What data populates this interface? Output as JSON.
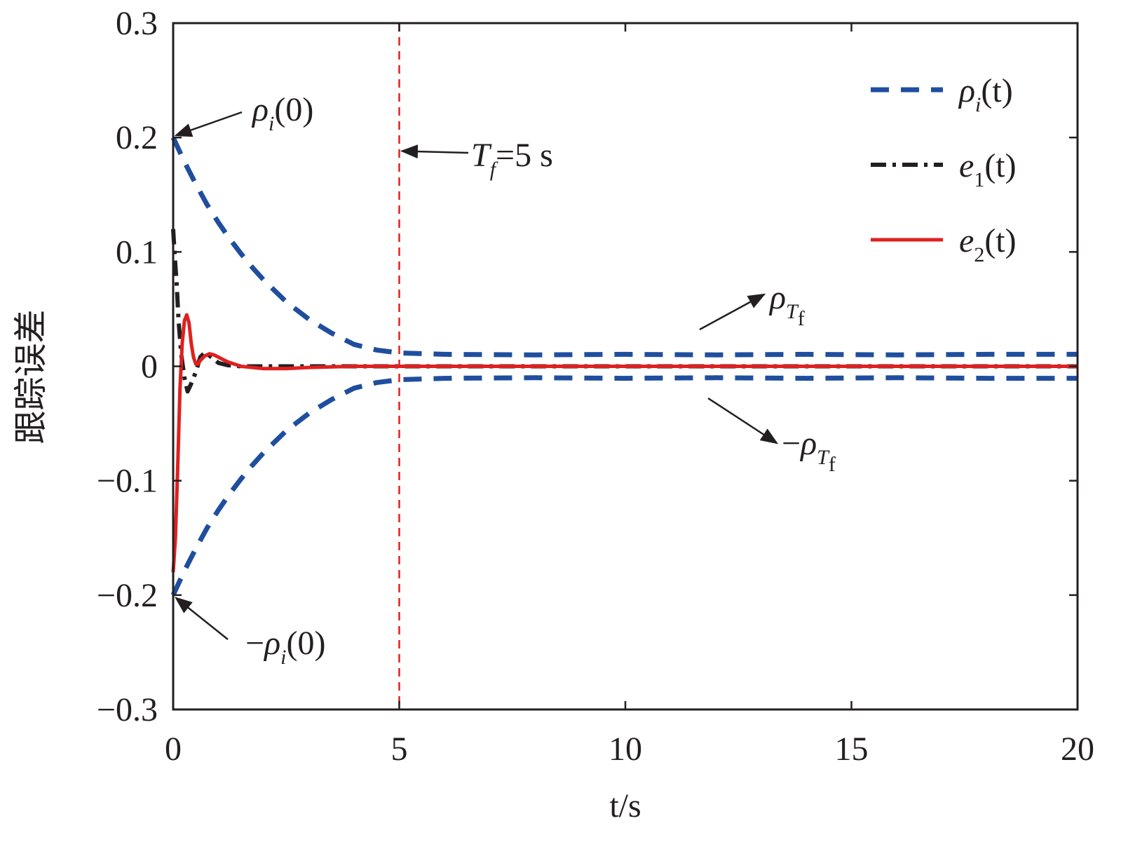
{
  "chart_data": {
    "type": "line",
    "xlabel": "t/s",
    "ylabel": "跟踪误差",
    "xlim": [
      0,
      20
    ],
    "ylim": [
      -0.3,
      0.3
    ],
    "xticks": [
      0,
      5,
      10,
      15,
      20
    ],
    "yticks": [
      -0.3,
      -0.2,
      -0.1,
      0,
      0.1,
      0.2,
      0.3
    ],
    "xtick_labels": [
      "0",
      "5",
      "10",
      "15",
      "20"
    ],
    "ytick_labels": [
      "−0.3",
      "−0.2",
      "−0.1",
      "0",
      "0.1",
      "0.2",
      "0.3"
    ],
    "grid": false,
    "legend_position": "top-right",
    "series": [
      {
        "name": "ρi(t)",
        "legend_main": "ρ",
        "legend_sub": "i",
        "legend_tail": "(t)",
        "color": "#1f4e9e",
        "style": "dashed",
        "x": [
          0,
          0.25,
          0.5,
          0.75,
          1,
          1.25,
          1.5,
          1.75,
          2,
          2.5,
          3,
          3.5,
          4,
          4.5,
          5,
          6,
          8,
          10,
          12,
          14,
          16,
          18,
          20
        ],
        "y": [
          0.2,
          0.1787,
          0.1593,
          0.1413,
          0.1257,
          0.1115,
          0.0984,
          0.0865,
          0.0755,
          0.0563,
          0.0412,
          0.0291,
          0.0191,
          0.0142,
          0.0117,
          0.0105,
          0.01,
          0.0105,
          0.01,
          0.0105,
          0.01,
          0.0105,
          0.0105
        ]
      },
      {
        "name": "−ρi(t)",
        "color": "#1f4e9e",
        "style": "dashed",
        "x": [
          0,
          0.25,
          0.5,
          0.75,
          1,
          1.25,
          1.5,
          1.75,
          2,
          2.5,
          3,
          3.5,
          4,
          4.5,
          5,
          6,
          8,
          10,
          12,
          14,
          16,
          18,
          20
        ],
        "y": [
          -0.2,
          -0.1787,
          -0.1593,
          -0.1413,
          -0.1257,
          -0.1115,
          -0.0984,
          -0.0865,
          -0.0755,
          -0.0563,
          -0.0412,
          -0.0291,
          -0.0191,
          -0.0142,
          -0.0117,
          -0.0105,
          -0.01,
          -0.0105,
          -0.01,
          -0.0105,
          -0.01,
          -0.0105,
          -0.0105
        ]
      },
      {
        "name": "e1(t)",
        "legend_main": "e",
        "legend_sub": "1",
        "legend_tail": "(t)",
        "color": "#231f20",
        "style": "dashdot",
        "x": [
          0,
          0.03,
          0.08,
          0.12,
          0.18,
          0.25,
          0.32,
          0.4,
          0.5,
          0.6,
          0.7,
          0.85,
          1,
          1.2,
          1.5,
          2,
          3,
          5,
          20
        ],
        "y": [
          0.12,
          0.1,
          0.07,
          0.04,
          0.01,
          -0.01,
          -0.022,
          -0.015,
          -0.005,
          0.008,
          0.012,
          0.008,
          0.003,
          0.001,
          0,
          0,
          0,
          0,
          0
        ]
      },
      {
        "name": "e2(t)",
        "legend_main": "e",
        "legend_sub": "2",
        "legend_tail": "(t)",
        "color": "#e02020",
        "style": "solid",
        "x": [
          0,
          0.05,
          0.1,
          0.15,
          0.2,
          0.25,
          0.3,
          0.35,
          0.4,
          0.45,
          0.5,
          0.55,
          0.6,
          0.7,
          0.8,
          0.9,
          1,
          1.2,
          1.5,
          2,
          2.5,
          3,
          4,
          5,
          20
        ],
        "y": [
          -0.18,
          -0.15,
          -0.09,
          -0.02,
          0.02,
          0.04,
          0.045,
          0.038,
          0.02,
          0.008,
          0.002,
          0.002,
          0.005,
          0.009,
          0.011,
          0.01,
          0.008,
          0.004,
          0,
          -0.002,
          -0.002,
          -0.001,
          0,
          0,
          0
        ]
      }
    ],
    "vline": {
      "x": 5,
      "color": "#e02020",
      "style": "dashed"
    },
    "annotations": [
      {
        "main": "ρ",
        "sub": "i",
        "tail": "(0)",
        "prefix": "",
        "target_x": 0,
        "target_y": 0.2
      },
      {
        "main": "ρ",
        "sub": "i",
        "tail": "(0)",
        "prefix": "−",
        "target_x": 0,
        "target_y": -0.2
      },
      {
        "main": "T",
        "sub": "f",
        "tail": "=5 s",
        "prefix": "",
        "target_x": 5,
        "target_y": 0.19
      },
      {
        "main": "ρ",
        "sub": "T",
        "subsub": "f",
        "prefix": "",
        "target_x": 13.3,
        "target_y": 0.065
      },
      {
        "main": "ρ",
        "sub": "T",
        "subsub": "f",
        "prefix": "−",
        "target_x": 13.3,
        "target_y": -0.067
      }
    ]
  }
}
